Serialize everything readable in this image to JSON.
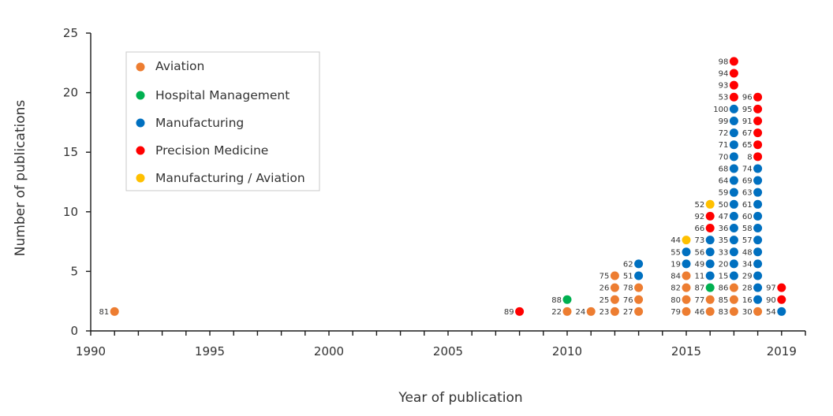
{
  "chart_data": {
    "type": "scatter",
    "xlabel": "Year of publication",
    "ylabel": "Number of publications",
    "xlim": [
      1990,
      2020
    ],
    "ylim": [
      0,
      25
    ],
    "xticks_labeled": [
      1990,
      1995,
      2000,
      2005,
      2010,
      2015,
      2019
    ],
    "yticks": [
      0,
      5,
      10,
      15,
      20,
      25
    ],
    "grid": false,
    "legend_position": "upper-left inside",
    "series": [
      {
        "name": "Aviation",
        "color": "#ED7D31",
        "points": [
          {
            "x": 1991,
            "y": 1,
            "label": "81"
          },
          {
            "x": 2010,
            "y": 1,
            "label": "22"
          },
          {
            "x": 2011,
            "y": 1,
            "label": "24"
          },
          {
            "x": 2012,
            "y": 1,
            "label": "23"
          },
          {
            "x": 2012,
            "y": 2,
            "label": "25"
          },
          {
            "x": 2012,
            "y": 3,
            "label": "26"
          },
          {
            "x": 2012,
            "y": 4,
            "label": "75"
          },
          {
            "x": 2013,
            "y": 1,
            "label": "27"
          },
          {
            "x": 2013,
            "y": 2,
            "label": "76"
          },
          {
            "x": 2013,
            "y": 3,
            "label": "78"
          },
          {
            "x": 2015,
            "y": 1,
            "label": "79"
          },
          {
            "x": 2015,
            "y": 2,
            "label": "80"
          },
          {
            "x": 2015,
            "y": 3,
            "label": "82"
          },
          {
            "x": 2015,
            "y": 4,
            "label": "84"
          },
          {
            "x": 2016,
            "y": 1,
            "label": "46"
          },
          {
            "x": 2016,
            "y": 2,
            "label": "77"
          },
          {
            "x": 2017,
            "y": 1,
            "label": "83"
          },
          {
            "x": 2017,
            "y": 2,
            "label": "85"
          },
          {
            "x": 2017,
            "y": 3,
            "label": "86"
          },
          {
            "x": 2018,
            "y": 1,
            "label": "30"
          }
        ]
      },
      {
        "name": "Hospital Management",
        "color": "#00B050",
        "points": [
          {
            "x": 2010,
            "y": 2,
            "label": "88"
          },
          {
            "x": 2016,
            "y": 3,
            "label": "87"
          }
        ]
      },
      {
        "name": "Manufacturing",
        "color": "#0070C0",
        "points": [
          {
            "x": 2013,
            "y": 4,
            "label": "51"
          },
          {
            "x": 2013,
            "y": 5,
            "label": "62"
          },
          {
            "x": 2015,
            "y": 5,
            "label": "19"
          },
          {
            "x": 2015,
            "y": 6,
            "label": "55"
          },
          {
            "x": 2016,
            "y": 4,
            "label": "11"
          },
          {
            "x": 2016,
            "y": 5,
            "label": "49"
          },
          {
            "x": 2016,
            "y": 6,
            "label": "56"
          },
          {
            "x": 2016,
            "y": 7,
            "label": "73"
          },
          {
            "x": 2017,
            "y": 4,
            "label": "15"
          },
          {
            "x": 2017,
            "y": 5,
            "label": "20"
          },
          {
            "x": 2017,
            "y": 6,
            "label": "33"
          },
          {
            "x": 2017,
            "y": 7,
            "label": "35"
          },
          {
            "x": 2017,
            "y": 8,
            "label": "36"
          },
          {
            "x": 2017,
            "y": 9,
            "label": "47"
          },
          {
            "x": 2017,
            "y": 10,
            "label": "50"
          },
          {
            "x": 2017,
            "y": 11,
            "label": "59"
          },
          {
            "x": 2017,
            "y": 12,
            "label": "64"
          },
          {
            "x": 2017,
            "y": 13,
            "label": "68"
          },
          {
            "x": 2017,
            "y": 14,
            "label": "70"
          },
          {
            "x": 2017,
            "y": 15,
            "label": "71"
          },
          {
            "x": 2017,
            "y": 16,
            "label": "72"
          },
          {
            "x": 2017,
            "y": 17,
            "label": "99"
          },
          {
            "x": 2017,
            "y": 18,
            "label": "100"
          },
          {
            "x": 2018,
            "y": 2,
            "label": "16"
          },
          {
            "x": 2018,
            "y": 3,
            "label": "28"
          },
          {
            "x": 2018,
            "y": 4,
            "label": "29"
          },
          {
            "x": 2018,
            "y": 5,
            "label": "34"
          },
          {
            "x": 2018,
            "y": 6,
            "label": "48"
          },
          {
            "x": 2018,
            "y": 7,
            "label": "57"
          },
          {
            "x": 2018,
            "y": 8,
            "label": "58"
          },
          {
            "x": 2018,
            "y": 9,
            "label": "60"
          },
          {
            "x": 2018,
            "y": 10,
            "label": "61"
          },
          {
            "x": 2018,
            "y": 11,
            "label": "63"
          },
          {
            "x": 2018,
            "y": 12,
            "label": "69"
          },
          {
            "x": 2018,
            "y": 13,
            "label": "74"
          },
          {
            "x": 2019,
            "y": 1,
            "label": "54"
          }
        ]
      },
      {
        "name": "Precision Medicine",
        "color": "#FF0000",
        "points": [
          {
            "x": 2008,
            "y": 1,
            "label": "89"
          },
          {
            "x": 2016,
            "y": 8,
            "label": "66"
          },
          {
            "x": 2016,
            "y": 9,
            "label": "92"
          },
          {
            "x": 2017,
            "y": 19,
            "label": "53"
          },
          {
            "x": 2017,
            "y": 20,
            "label": "93"
          },
          {
            "x": 2017,
            "y": 21,
            "label": "94"
          },
          {
            "x": 2017,
            "y": 22,
            "label": "98"
          },
          {
            "x": 2018,
            "y": 14,
            "label": "8"
          },
          {
            "x": 2018,
            "y": 15,
            "label": "65"
          },
          {
            "x": 2018,
            "y": 16,
            "label": "67"
          },
          {
            "x": 2018,
            "y": 17,
            "label": "91"
          },
          {
            "x": 2018,
            "y": 18,
            "label": "95"
          },
          {
            "x": 2018,
            "y": 19,
            "label": "96"
          },
          {
            "x": 2019,
            "y": 2,
            "label": "90"
          },
          {
            "x": 2019,
            "y": 3,
            "label": "97"
          }
        ]
      },
      {
        "name": "Manufacturing / Aviation",
        "color": "#FFC000",
        "points": [
          {
            "x": 2015,
            "y": 7,
            "label": "44"
          },
          {
            "x": 2016,
            "y": 10,
            "label": "52"
          }
        ]
      }
    ]
  }
}
